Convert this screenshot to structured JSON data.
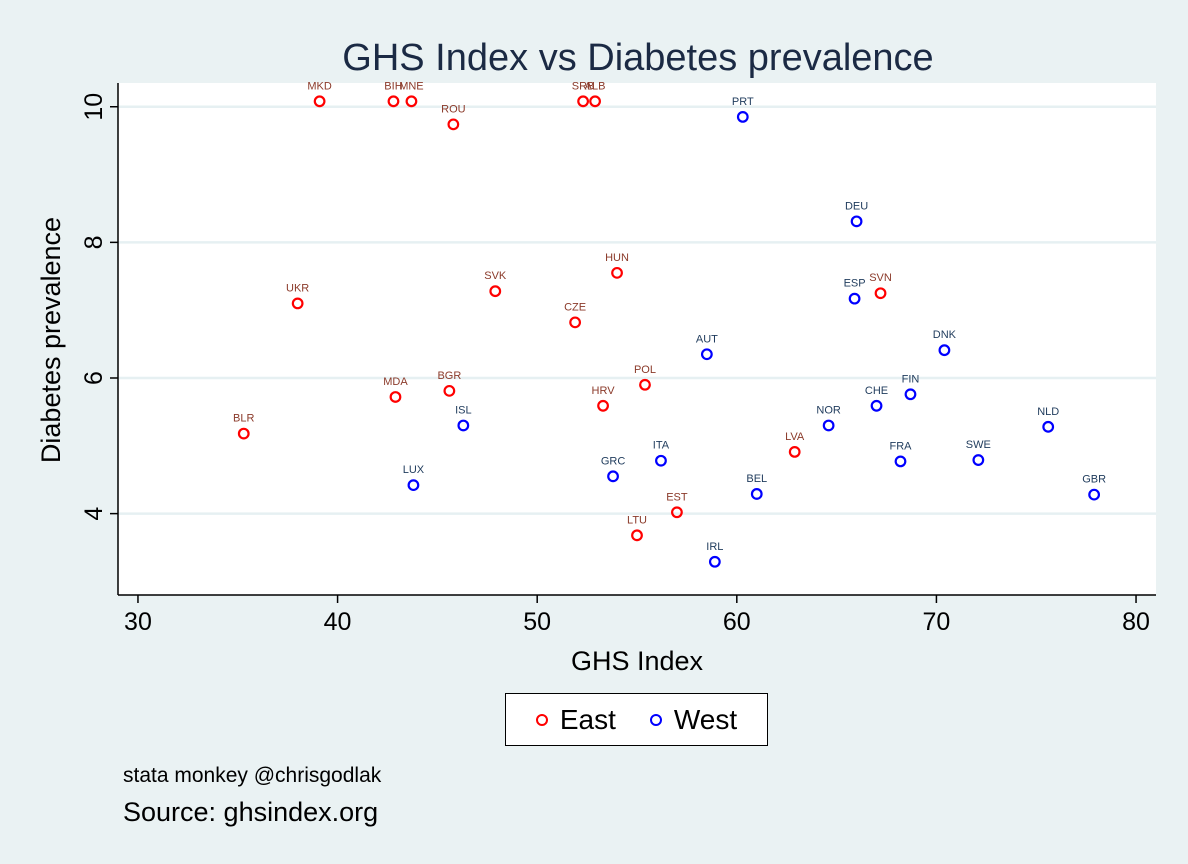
{
  "chart_data": {
    "type": "scatter",
    "title": "GHS Index vs Diabetes prevalence",
    "xlabel": "GHS Index",
    "ylabel": "Diabetes prevalence",
    "xlim": [
      29,
      81
    ],
    "ylim": [
      2.8,
      10.35
    ],
    "xticks": [
      30,
      40,
      50,
      60,
      70,
      80
    ],
    "yticks": [
      4,
      6,
      8,
      10
    ],
    "grid": "horizontal",
    "legend_position": "bottom-center",
    "series": [
      {
        "name": "East",
        "color": "#ff0000",
        "label_color": "#8b3a2a",
        "points": [
          {
            "label": "MKD",
            "x": 39.1,
            "y": 10.08
          },
          {
            "label": "BIH",
            "x": 42.8,
            "y": 10.08
          },
          {
            "label": "MNE",
            "x": 43.7,
            "y": 10.08
          },
          {
            "label": "ROU",
            "x": 45.8,
            "y": 9.74
          },
          {
            "label": "SRB",
            "x": 52.3,
            "y": 10.08
          },
          {
            "label": "ALB",
            "x": 52.9,
            "y": 10.08
          },
          {
            "label": "UKR",
            "x": 38.0,
            "y": 7.1
          },
          {
            "label": "SVK",
            "x": 47.9,
            "y": 7.28
          },
          {
            "label": "HUN",
            "x": 54.0,
            "y": 7.55
          },
          {
            "label": "CZE",
            "x": 51.9,
            "y": 6.82
          },
          {
            "label": "SVN",
            "x": 67.2,
            "y": 7.25
          },
          {
            "label": "BLR",
            "x": 35.3,
            "y": 5.18
          },
          {
            "label": "MDA",
            "x": 42.9,
            "y": 5.72
          },
          {
            "label": "BGR",
            "x": 45.6,
            "y": 5.81
          },
          {
            "label": "POL",
            "x": 55.4,
            "y": 5.9
          },
          {
            "label": "HRV",
            "x": 53.3,
            "y": 5.59
          },
          {
            "label": "LVA",
            "x": 62.9,
            "y": 4.91
          },
          {
            "label": "EST",
            "x": 57.0,
            "y": 4.02
          },
          {
            "label": "LTU",
            "x": 55.0,
            "y": 3.68
          }
        ]
      },
      {
        "name": "West",
        "color": "#0000ff",
        "label_color": "#1f3b5c",
        "points": [
          {
            "label": "PRT",
            "x": 60.3,
            "y": 9.85
          },
          {
            "label": "DEU",
            "x": 66.0,
            "y": 8.31
          },
          {
            "label": "ESP",
            "x": 65.9,
            "y": 7.17
          },
          {
            "label": "AUT",
            "x": 58.5,
            "y": 6.35
          },
          {
            "label": "DNK",
            "x": 70.4,
            "y": 6.41
          },
          {
            "label": "CHE",
            "x": 67.0,
            "y": 5.59
          },
          {
            "label": "FIN",
            "x": 68.7,
            "y": 5.76
          },
          {
            "label": "NOR",
            "x": 64.6,
            "y": 5.3
          },
          {
            "label": "ISL",
            "x": 46.3,
            "y": 5.3
          },
          {
            "label": "NLD",
            "x": 75.6,
            "y": 5.28
          },
          {
            "label": "ITA",
            "x": 56.2,
            "y": 4.78
          },
          {
            "label": "FRA",
            "x": 68.2,
            "y": 4.77
          },
          {
            "label": "SWE",
            "x": 72.1,
            "y": 4.79
          },
          {
            "label": "GRC",
            "x": 53.8,
            "y": 4.55
          },
          {
            "label": "LUX",
            "x": 43.8,
            "y": 4.42
          },
          {
            "label": "BEL",
            "x": 61.0,
            "y": 4.29
          },
          {
            "label": "GBR",
            "x": 77.9,
            "y": 4.28
          },
          {
            "label": "IRL",
            "x": 58.9,
            "y": 3.29
          }
        ]
      }
    ]
  },
  "notes": {
    "author": "stata monkey @chrisgodlak",
    "source": "Source: ghsindex.org"
  }
}
